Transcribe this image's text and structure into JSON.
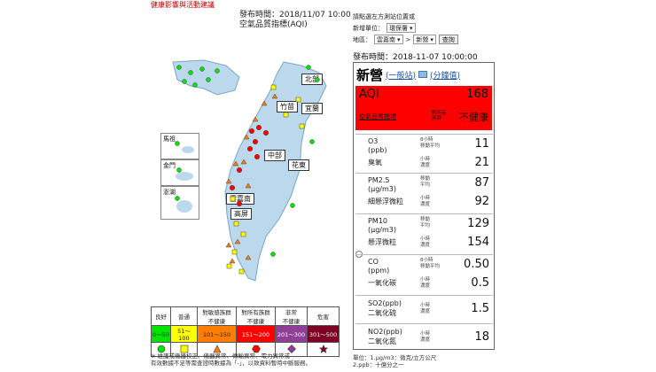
{
  "top_link": "健康影響與活動建議",
  "map_header": {
    "publish_line": "發布時間：2018/11/07 10:00",
    "subtitle": "空氣品質指標(AQI)"
  },
  "map": {
    "insets": [
      "馬祖",
      "金門",
      "澎湖"
    ],
    "regions": [
      "北部",
      "竹苗",
      "宜蘭",
      "中部",
      "花東",
      "雲嘉南",
      "高屏"
    ]
  },
  "legend": {
    "headers": [
      "良好",
      "普通",
      "對敏感族群\n不健康",
      "對所有族群\n不健康",
      "非常\n不健康",
      "危害"
    ],
    "ranges": [
      "0～50",
      "51～100",
      "101～150",
      "151～200",
      "201～300",
      "301～500"
    ],
    "colors": [
      "#00e400",
      "#ffff00",
      "#ff7e00",
      "#ff0000",
      "#8f3f97",
      "#7e0023"
    ],
    "symbols": [
      "circle",
      "square",
      "triangle",
      "hexagon",
      "diamond",
      "star"
    ]
  },
  "note": "※ 維護或儀器校正、儀器異常、傳輸異常、電力異常或\n有效數據不足等需查證時數據為「-」，以致資料暫時中斷服務。",
  "selector": {
    "row1_label": "請點選左方測站位置或",
    "row2_label": "新增單位：",
    "row2_value": "環保署",
    "row3_label": "地區：",
    "region_value": "雲嘉南",
    "station_value": "新營",
    "query_label": "查詢"
  },
  "publish_time": "發布時間：2018-11-07 10:00:00",
  "panel": {
    "station": "新營",
    "link_general": "(一般站)",
    "link_values": "(分鐘值)",
    "aqi_label": "AQI",
    "aqi_value": "168",
    "aqi_sub": "空氣品質指標",
    "aqi_avg": "對所有\n族群",
    "aqi_status": "不健康",
    "aqi_color": "#ff0000",
    "pollutants": [
      {
        "name": "O3\n(ppb)",
        "cname": "臭氧",
        "avg1": "8小時\n移動平均",
        "val1": "11",
        "avg2": "小時\n濃度",
        "val2": "21"
      },
      {
        "name": "PM2.5\n(μg/m3)",
        "cname": "細懸浮微粒",
        "avg1": "移動\n平均",
        "val1": "87",
        "avg2": "小時\n濃度",
        "val2": "92"
      },
      {
        "name": "PM10\n(μg/m3)",
        "cname": "懸浮微粒",
        "avg1": "移動\n平均",
        "val1": "129",
        "avg2": "小時\n濃度",
        "val2": "154"
      },
      {
        "name": "CO\n(ppm)",
        "cname": "一氧化碳",
        "avg1": "8小時\n移動平均",
        "val1": "0.50",
        "avg2": "小時\n濃度",
        "val2": "0.5"
      },
      {
        "name": "SO2(ppb)",
        "cname": "二氧化硫",
        "avg1": "小時\n濃度",
        "val1": "1.5"
      },
      {
        "name": "NO2(ppb)",
        "cname": "二氧化氮",
        "avg1": "小時\n濃度",
        "val1": "18"
      }
    ]
  },
  "units": "單位：1.μg/m3：微克/立方公尺\n2.ppb：十億分之一"
}
